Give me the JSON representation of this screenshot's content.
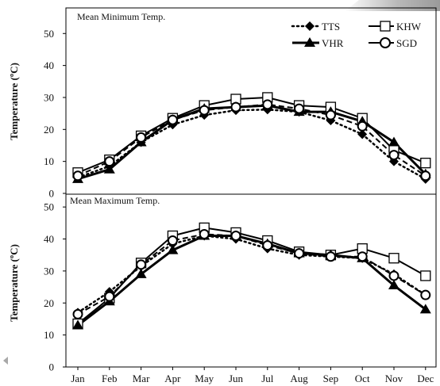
{
  "chart_data": {
    "type": "line",
    "months": [
      "Jan",
      "Feb",
      "Mar",
      "Apr",
      "May",
      "Jun",
      "Jul",
      "Aug",
      "Sep",
      "Oct",
      "Nov",
      "Dec"
    ],
    "legend": [
      "TTS",
      "KHW",
      "VHR",
      "SGD"
    ],
    "panels": [
      {
        "title": "Mean Minimum  Temp.",
        "ylabel": "Temperature (ºC)",
        "ylim": [
          0,
          58
        ],
        "yticks": [
          0,
          10,
          20,
          30,
          40,
          50
        ],
        "series": [
          {
            "name": "TTS",
            "values": [
              5,
              8.5,
              16,
              21.5,
              24.5,
              26,
              26.2,
              25.5,
              22.8,
              18.5,
              10,
              4.5
            ]
          },
          {
            "name": "KHW",
            "values": [
              6.5,
              10.5,
              18,
              23.5,
              27.5,
              29.5,
              30,
              27.5,
              27,
              23.5,
              13.5,
              9.5
            ]
          },
          {
            "name": "VHR",
            "values": [
              4.5,
              7.5,
              16,
              23,
              26.5,
              27,
              27.5,
              25.5,
              25.5,
              22.5,
              16,
              6
            ]
          },
          {
            "name": "SGD",
            "values": [
              5.5,
              10,
              17.5,
              23,
              26,
              27,
              27.8,
              26.5,
              24.5,
              21,
              12,
              5.5
            ]
          }
        ]
      },
      {
        "title": "Mean Maximum  Temp.",
        "ylabel": "Temperature (ºC)",
        "ylim": [
          0,
          54
        ],
        "yticks": [
          0,
          10,
          20,
          30,
          40,
          50
        ],
        "series": [
          {
            "name": "TTS",
            "values": [
              17,
              23.5,
              31.5,
              38.5,
              41,
              40,
              37,
              35,
              34.5,
              34,
              29,
              22.5
            ]
          },
          {
            "name": "KHW",
            "values": [
              13.5,
              21.5,
              32.5,
              41,
              43.5,
              42,
              39.5,
              36,
              35,
              37,
              34,
              28.5
            ]
          },
          {
            "name": "VHR",
            "values": [
              13,
              20.5,
              29,
              36.5,
              41,
              41,
              38.5,
              35.5,
              35,
              34,
              25.5,
              18
            ]
          },
          {
            "name": "SGD",
            "values": [
              16.5,
              22,
              32,
              39.5,
              41.5,
              41,
              38,
              35.5,
              34.5,
              34.5,
              28.5,
              22.5
            ]
          }
        ]
      }
    ]
  }
}
